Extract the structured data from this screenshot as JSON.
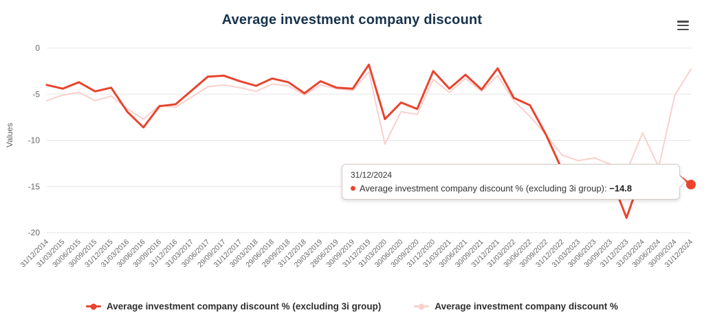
{
  "header": {
    "title": "Average investment company discount",
    "menu_icon": "hamburger-menu-icon"
  },
  "y_axis": {
    "title": "Values"
  },
  "tooltip": {
    "header": "31/12/2024",
    "series_label": "Average investment company discount % (excluding 3i group)",
    "separator": ": ",
    "value": "−14.8"
  },
  "colors": {
    "title_text": "#17324b",
    "axis_label_text": "#666666",
    "gridline": "#e6e6e6",
    "series_primary": "#e8442e",
    "series_secondary": "#f9d0cc"
  },
  "chart_data": {
    "type": "line",
    "title": "Average investment company discount",
    "xlabel": "",
    "ylabel": "Values",
    "ylim": [
      -20,
      0
    ],
    "y_ticks": [
      0,
      -5,
      -10,
      -15,
      -20
    ],
    "grid": true,
    "legend_position": "bottom",
    "categories": [
      "31/12/2014",
      "31/03/2015",
      "30/06/2015",
      "30/09/2015",
      "31/12/2015",
      "31/03/2016",
      "30/06/2016",
      "30/09/2016",
      "31/12/2016",
      "31/03/2017",
      "30/06/2017",
      "29/09/2017",
      "31/12/2017",
      "30/03/2018",
      "29/06/2018",
      "28/09/2018",
      "31/12/2018",
      "29/03/2019",
      "28/06/2019",
      "30/09/2019",
      "31/12/2019",
      "31/03/2020",
      "30/06/2020",
      "30/09/2020",
      "31/12/2020",
      "31/03/2021",
      "30/06/2021",
      "30/09/2021",
      "31/12/2021",
      "31/03/2022",
      "30/06/2022",
      "30/09/2022",
      "31/12/2022",
      "31/03/2023",
      "30/06/2023",
      "30/09/2023",
      "31/12/2023",
      "31/03/2024",
      "30/06/2024",
      "30/09/2024",
      "31/12/2024"
    ],
    "series": [
      {
        "name": "Average investment company discount % (excluding 3i group)",
        "color": "#e8442e",
        "values": [
          -4.0,
          -4.4,
          -3.7,
          -4.7,
          -4.3,
          -6.9,
          -8.6,
          -6.3,
          -6.1,
          -4.6,
          -3.1,
          -3.0,
          -3.6,
          -4.1,
          -3.3,
          -3.7,
          -4.9,
          -3.6,
          -4.3,
          -4.4,
          -1.8,
          -7.7,
          -5.9,
          -6.6,
          -2.5,
          -4.4,
          -2.9,
          -4.5,
          -2.2,
          -5.4,
          -6.2,
          -9.4,
          -13.2,
          -12.9,
          -13.1,
          -13.9,
          -18.4,
          -13.4,
          -14.4,
          -13.5,
          -14.8
        ]
      },
      {
        "name": "Average investment company discount %",
        "color": "#f9d0cc",
        "values": [
          -5.7,
          -5.1,
          -4.8,
          -5.7,
          -5.2,
          -6.6,
          -7.7,
          -6.2,
          -6.4,
          -5.3,
          -4.2,
          -4.0,
          -4.3,
          -4.7,
          -3.9,
          -4.1,
          -5.1,
          -4.0,
          -4.4,
          -4.6,
          -2.6,
          -10.4,
          -6.9,
          -7.2,
          -3.4,
          -4.8,
          -3.3,
          -4.7,
          -3.0,
          -5.7,
          -7.4,
          -9.4,
          -11.6,
          -12.2,
          -11.9,
          -12.6,
          -13.4,
          -9.2,
          -12.9,
          -5.1,
          -2.3
        ]
      }
    ]
  }
}
